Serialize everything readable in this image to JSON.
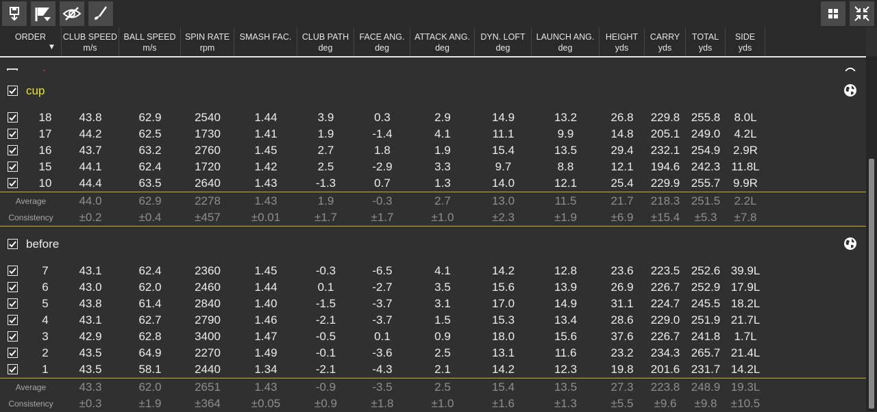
{
  "toolbar": {
    "left_buttons": [
      {
        "name": "download-icon"
      },
      {
        "name": "flag-filter-icon"
      },
      {
        "name": "eye-hidden-icon"
      },
      {
        "name": "golf-club-icon"
      }
    ],
    "right_buttons": [
      {
        "name": "grid-view-icon"
      },
      {
        "name": "collapse-icon"
      }
    ]
  },
  "columns": [
    {
      "label": "ORDER",
      "unit": ""
    },
    {
      "label": "CLUB SPEED",
      "unit": "m/s"
    },
    {
      "label": "BALL SPEED",
      "unit": "m/s"
    },
    {
      "label": "SPIN RATE",
      "unit": "rpm"
    },
    {
      "label": "SMASH FAC.",
      "unit": ""
    },
    {
      "label": "CLUB PATH",
      "unit": "deg"
    },
    {
      "label": "FACE ANG.",
      "unit": "deg"
    },
    {
      "label": "ATTACK ANG.",
      "unit": "deg"
    },
    {
      "label": "DYN. LOFT",
      "unit": "deg"
    },
    {
      "label": "LAUNCH ANG.",
      "unit": "deg"
    },
    {
      "label": "HEIGHT",
      "unit": "yds"
    },
    {
      "label": "CARRY",
      "unit": "yds"
    },
    {
      "label": "TOTAL",
      "unit": "yds"
    },
    {
      "label": "SIDE",
      "unit": "yds"
    }
  ],
  "sort_indicator": "▼",
  "groups": [
    {
      "title": "cup",
      "title_color": "#f0e332",
      "checked": true,
      "rows": [
        {
          "checked": true,
          "values": [
            "18",
            "43.8",
            "62.9",
            "2540",
            "1.44",
            "3.9",
            "0.3",
            "2.9",
            "14.9",
            "13.2",
            "26.8",
            "229.8",
            "255.8",
            "8.0L"
          ]
        },
        {
          "checked": true,
          "values": [
            "17",
            "44.2",
            "62.5",
            "1730",
            "1.41",
            "1.9",
            "-1.4",
            "4.1",
            "11.1",
            "9.9",
            "14.8",
            "205.1",
            "249.0",
            "4.2L"
          ]
        },
        {
          "checked": true,
          "values": [
            "16",
            "43.7",
            "63.2",
            "2760",
            "1.45",
            "2.7",
            "1.8",
            "1.9",
            "15.4",
            "13.5",
            "29.4",
            "232.1",
            "254.9",
            "2.9R"
          ]
        },
        {
          "checked": true,
          "values": [
            "15",
            "44.1",
            "62.4",
            "1720",
            "1.42",
            "2.5",
            "-2.9",
            "3.3",
            "9.7",
            "8.8",
            "12.1",
            "194.6",
            "242.3",
            "11.8L"
          ]
        },
        {
          "checked": true,
          "values": [
            "10",
            "44.4",
            "63.5",
            "2640",
            "1.43",
            "-1.3",
            "0.7",
            "1.3",
            "14.0",
            "12.1",
            "25.4",
            "229.9",
            "255.7",
            "9.9R"
          ]
        }
      ],
      "average": {
        "label": "Average",
        "values": [
          "44.0",
          "62.9",
          "2278",
          "1.43",
          "1.9",
          "-0.3",
          "2.7",
          "13.0",
          "11.5",
          "21.7",
          "218.3",
          "251.5",
          "2.2L"
        ]
      },
      "consistency": {
        "label": "Consistency",
        "values": [
          "±0.2",
          "±0.4",
          "±457",
          "±0.01",
          "±1.7",
          "±1.7",
          "±1.0",
          "±2.3",
          "±1.9",
          "±6.9",
          "±15.4",
          "±5.3",
          "±7.8"
        ]
      }
    },
    {
      "title": "before",
      "title_color": "#ececec",
      "checked": true,
      "rows": [
        {
          "checked": true,
          "values": [
            "7",
            "43.1",
            "62.4",
            "2360",
            "1.45",
            "-0.3",
            "-6.5",
            "4.1",
            "14.2",
            "12.8",
            "23.6",
            "223.5",
            "252.6",
            "39.9L"
          ]
        },
        {
          "checked": true,
          "values": [
            "6",
            "43.0",
            "62.0",
            "2460",
            "1.44",
            "0.1",
            "-2.7",
            "3.5",
            "15.6",
            "13.9",
            "26.9",
            "226.7",
            "252.9",
            "17.9L"
          ]
        },
        {
          "checked": true,
          "values": [
            "5",
            "43.8",
            "61.4",
            "2840",
            "1.40",
            "-1.5",
            "-3.7",
            "3.1",
            "17.0",
            "14.9",
            "31.1",
            "224.7",
            "245.5",
            "18.2L"
          ]
        },
        {
          "checked": true,
          "values": [
            "4",
            "43.1",
            "62.7",
            "2790",
            "1.46",
            "-2.1",
            "-3.7",
            "1.5",
            "15.3",
            "13.4",
            "28.6",
            "229.0",
            "251.9",
            "21.7L"
          ]
        },
        {
          "checked": true,
          "values": [
            "3",
            "42.9",
            "62.8",
            "3400",
            "1.47",
            "-0.5",
            "0.1",
            "0.9",
            "18.0",
            "15.6",
            "37.6",
            "226.7",
            "241.8",
            "1.7L"
          ]
        },
        {
          "checked": true,
          "values": [
            "2",
            "43.5",
            "64.9",
            "2270",
            "1.49",
            "-0.1",
            "-3.6",
            "2.5",
            "13.1",
            "11.6",
            "23.2",
            "234.3",
            "265.7",
            "21.4L"
          ]
        },
        {
          "checked": true,
          "values": [
            "1",
            "43.5",
            "58.1",
            "2440",
            "1.34",
            "-2.1",
            "-4.3",
            "2.1",
            "14.2",
            "12.3",
            "19.8",
            "201.6",
            "231.7",
            "14.2L"
          ]
        }
      ],
      "average": {
        "label": "Average",
        "values": [
          "43.3",
          "62.0",
          "2651",
          "1.43",
          "-0.9",
          "-3.5",
          "2.5",
          "15.4",
          "13.5",
          "27.3",
          "223.8",
          "248.9",
          "19.3L"
        ]
      },
      "consistency": {
        "label": "Consistency",
        "values": [
          "±0.3",
          "±1.9",
          "±364",
          "±0.05",
          "±0.9",
          "±1.8",
          "±1.0",
          "±1.6",
          "±1.3",
          "±5.5",
          "±9.6",
          "±9.8",
          "±10.5"
        ]
      }
    }
  ]
}
